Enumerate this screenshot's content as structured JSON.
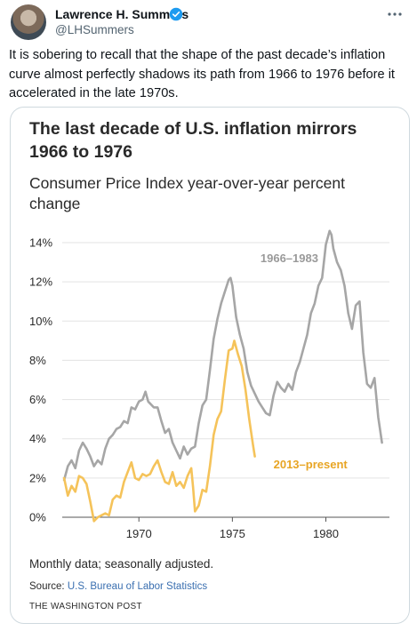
{
  "tweet": {
    "author_name": "Lawrence H. Summers",
    "author_handle": "@LHSummers",
    "text": "It is sobering to recall that the shape of the past decade’s inflation curve almost perfectly shadows its path from 1966 to 1976 before it accelerated in the late 1970s."
  },
  "card": {
    "title": "The last decade of U.S. inflation mirrors 1966 to 1976",
    "subtitle": "Consumer Price Index year-over-year percent change",
    "note": "Monthly data; seasonally adjusted.",
    "source_prefix": "Source: ",
    "source_name": "U.S. Bureau of Labor Statistics",
    "credit": "THE WASHINGTON POST"
  },
  "colors": {
    "series_1966": "#a6a6a6",
    "series_2013": "#f5c35a",
    "label_2013": "#e8a524",
    "grid": "#e3e3e3",
    "verified": "#1d9bf0"
  },
  "chart_data": {
    "type": "line",
    "title": "The last decade of U.S. inflation mirrors 1966 to 1976",
    "subtitle": "Consumer Price Index year-over-year percent change",
    "xlabel": "",
    "ylabel": "",
    "xlim": [
      1965.9,
      1983.4
    ],
    "ylim": [
      0,
      14
    ],
    "x_ticks": [
      1970,
      1975,
      1980
    ],
    "y_ticks": [
      0,
      2,
      4,
      6,
      8,
      10,
      12,
      14
    ],
    "y_tick_labels": [
      "0%",
      "2%",
      "4%",
      "6%",
      "8%",
      "10%",
      "12%",
      "14%"
    ],
    "grid": true,
    "series": [
      {
        "name": "1966–1983",
        "points": [
          [
            1966.0,
            1.9
          ],
          [
            1966.2,
            2.6
          ],
          [
            1966.4,
            2.9
          ],
          [
            1966.6,
            2.5
          ],
          [
            1966.8,
            3.4
          ],
          [
            1967.0,
            3.8
          ],
          [
            1967.2,
            3.5
          ],
          [
            1967.4,
            3.1
          ],
          [
            1967.6,
            2.6
          ],
          [
            1967.8,
            2.9
          ],
          [
            1968.0,
            2.7
          ],
          [
            1968.2,
            3.5
          ],
          [
            1968.4,
            4.0
          ],
          [
            1968.6,
            4.2
          ],
          [
            1968.8,
            4.5
          ],
          [
            1969.0,
            4.6
          ],
          [
            1969.2,
            4.9
          ],
          [
            1969.4,
            4.8
          ],
          [
            1969.6,
            5.6
          ],
          [
            1969.8,
            5.5
          ],
          [
            1970.0,
            5.9
          ],
          [
            1970.2,
            6.0
          ],
          [
            1970.35,
            6.4
          ],
          [
            1970.5,
            5.9
          ],
          [
            1970.8,
            5.6
          ],
          [
            1971.0,
            5.6
          ],
          [
            1971.2,
            4.9
          ],
          [
            1971.4,
            4.3
          ],
          [
            1971.6,
            4.5
          ],
          [
            1971.8,
            3.8
          ],
          [
            1972.0,
            3.4
          ],
          [
            1972.2,
            3.0
          ],
          [
            1972.4,
            3.6
          ],
          [
            1972.6,
            3.2
          ],
          [
            1972.8,
            3.5
          ],
          [
            1973.0,
            3.6
          ],
          [
            1973.2,
            4.8
          ],
          [
            1973.4,
            5.7
          ],
          [
            1973.6,
            6.0
          ],
          [
            1973.8,
            7.5
          ],
          [
            1974.0,
            9.1
          ],
          [
            1974.2,
            10.1
          ],
          [
            1974.4,
            10.9
          ],
          [
            1974.6,
            11.5
          ],
          [
            1974.8,
            12.1
          ],
          [
            1974.9,
            12.2
          ],
          [
            1975.0,
            11.8
          ],
          [
            1975.2,
            10.2
          ],
          [
            1975.4,
            9.3
          ],
          [
            1975.6,
            8.6
          ],
          [
            1975.8,
            7.4
          ],
          [
            1976.0,
            6.7
          ],
          [
            1976.2,
            6.3
          ],
          [
            1976.4,
            5.9
          ],
          [
            1976.6,
            5.6
          ],
          [
            1976.8,
            5.3
          ],
          [
            1977.0,
            5.2
          ],
          [
            1977.2,
            6.2
          ],
          [
            1977.4,
            6.9
          ],
          [
            1977.6,
            6.6
          ],
          [
            1977.8,
            6.4
          ],
          [
            1978.0,
            6.8
          ],
          [
            1978.2,
            6.5
          ],
          [
            1978.4,
            7.4
          ],
          [
            1978.6,
            7.9
          ],
          [
            1978.8,
            8.6
          ],
          [
            1979.0,
            9.3
          ],
          [
            1979.2,
            10.4
          ],
          [
            1979.4,
            10.9
          ],
          [
            1979.6,
            11.8
          ],
          [
            1979.8,
            12.2
          ],
          [
            1980.0,
            13.9
          ],
          [
            1980.2,
            14.6
          ],
          [
            1980.3,
            14.4
          ],
          [
            1980.4,
            13.7
          ],
          [
            1980.6,
            13.0
          ],
          [
            1980.8,
            12.6
          ],
          [
            1981.0,
            11.8
          ],
          [
            1981.2,
            10.4
          ],
          [
            1981.4,
            9.6
          ],
          [
            1981.6,
            10.8
          ],
          [
            1981.8,
            11.0
          ],
          [
            1982.0,
            8.4
          ],
          [
            1982.2,
            6.8
          ],
          [
            1982.4,
            6.6
          ],
          [
            1982.6,
            7.1
          ],
          [
            1982.8,
            5.1
          ],
          [
            1983.0,
            3.8
          ]
        ]
      },
      {
        "name": "2013–present",
        "points": [
          [
            1966.0,
            2.0
          ],
          [
            1966.2,
            1.1
          ],
          [
            1966.4,
            1.6
          ],
          [
            1966.6,
            1.3
          ],
          [
            1966.8,
            2.1
          ],
          [
            1967.0,
            2.0
          ],
          [
            1967.2,
            1.7
          ],
          [
            1967.4,
            0.8
          ],
          [
            1967.6,
            -0.2
          ],
          [
            1967.8,
            0.0
          ],
          [
            1968.0,
            0.1
          ],
          [
            1968.2,
            0.2
          ],
          [
            1968.4,
            0.1
          ],
          [
            1968.6,
            0.9
          ],
          [
            1968.8,
            1.1
          ],
          [
            1969.0,
            1.0
          ],
          [
            1969.2,
            1.8
          ],
          [
            1969.4,
            2.3
          ],
          [
            1969.6,
            2.8
          ],
          [
            1969.8,
            2.0
          ],
          [
            1970.0,
            1.9
          ],
          [
            1970.2,
            2.2
          ],
          [
            1970.4,
            2.1
          ],
          [
            1970.6,
            2.2
          ],
          [
            1970.8,
            2.6
          ],
          [
            1971.0,
            2.9
          ],
          [
            1971.2,
            2.3
          ],
          [
            1971.4,
            1.8
          ],
          [
            1971.6,
            1.7
          ],
          [
            1971.8,
            2.3
          ],
          [
            1972.0,
            1.6
          ],
          [
            1972.2,
            1.8
          ],
          [
            1972.4,
            1.5
          ],
          [
            1972.6,
            2.1
          ],
          [
            1972.8,
            2.5
          ],
          [
            1972.9,
            1.5
          ],
          [
            1973.0,
            0.3
          ],
          [
            1973.2,
            0.6
          ],
          [
            1973.4,
            1.4
          ],
          [
            1973.6,
            1.3
          ],
          [
            1973.8,
            2.6
          ],
          [
            1974.0,
            4.2
          ],
          [
            1974.2,
            5.0
          ],
          [
            1974.4,
            5.4
          ],
          [
            1974.6,
            7.0
          ],
          [
            1974.8,
            8.5
          ],
          [
            1975.0,
            8.6
          ],
          [
            1975.1,
            9.0
          ],
          [
            1975.3,
            8.3
          ],
          [
            1975.5,
            7.7
          ],
          [
            1975.7,
            6.5
          ],
          [
            1975.9,
            5.0
          ],
          [
            1976.1,
            3.7
          ],
          [
            1976.2,
            3.1
          ]
        ]
      }
    ],
    "annotations": [
      {
        "text": "1966–1983",
        "x": 1976.5,
        "y": 13.0,
        "series": 0
      },
      {
        "text": "2013–present",
        "x": 1977.2,
        "y": 2.5,
        "series": 1
      }
    ]
  }
}
